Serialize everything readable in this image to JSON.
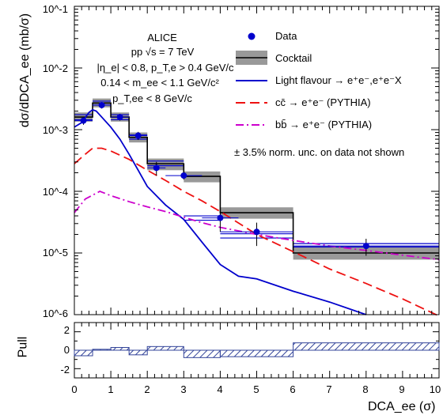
{
  "chart_data": {
    "type": "line",
    "experiment": "ALICE",
    "annotations": [
      "ALICE",
      "pp √s = 7 TeV",
      "|η_e| < 0.8, p_T,e > 0.4 GeV/c",
      "0.14 < m_ee < 1.1 GeV/c²",
      "p_T,ee < 8 GeV/c"
    ],
    "norm_note": "± 3.5% norm. unc. on data not shown",
    "xlabel": "DCA_ee (σ)",
    "ylabel": "dσ/dDCA_ee (mb/σ)",
    "pull_ylabel": "Pull",
    "xlim": [
      0,
      10
    ],
    "ylim": [
      1e-06,
      0.1
    ],
    "yscale": "log",
    "pull_ylim": [
      -3,
      3
    ],
    "x_ticks": [
      "0",
      "1",
      "2",
      "3",
      "4",
      "5",
      "6",
      "7",
      "8",
      "9",
      "10"
    ],
    "y_ticks": [
      "10^-6",
      "10^-5",
      "10^-4",
      "10^-3",
      "10^-2",
      "10^-1"
    ],
    "pull_ticks": [
      "2",
      "0",
      "-2"
    ],
    "legend": [
      "Data",
      "Cocktail",
      "Light flavour → e⁺e⁻,e⁺e⁻X",
      "cc̄ → e⁺e⁻ (PYTHIA)",
      "bb̄ → e⁺e⁻ (PYTHIA)"
    ],
    "colors": {
      "data": "#0000cc",
      "cocktail": "#000000",
      "band": "#999999",
      "lf": "#0000cc",
      "cc": "#ee1111",
      "bb": "#cc00cc",
      "pull": "#334499"
    },
    "data_points": [
      {
        "x": 0.25,
        "y": 0.0014,
        "xerr": 0.25,
        "yerr_lo": 0.0002,
        "yerr_hi": 0.0002
      },
      {
        "x": 0.75,
        "y": 0.0025,
        "xerr": 0.25,
        "yerr_lo": 0.0003,
        "yerr_hi": 0.0003
      },
      {
        "x": 1.25,
        "y": 0.0016,
        "xerr": 0.25,
        "yerr_lo": 0.0002,
        "yerr_hi": 0.0002
      },
      {
        "x": 1.75,
        "y": 0.0008,
        "xerr": 0.25,
        "yerr_lo": 0.00012,
        "yerr_hi": 0.00012
      },
      {
        "x": 2.25,
        "y": 0.00024,
        "xerr": 0.25,
        "yerr_lo": 6e-05,
        "yerr_hi": 6e-05
      },
      {
        "x": 3.0,
        "y": 0.00018,
        "xerr": 0.5,
        "yerr_lo": 2.5e-05,
        "yerr_hi": 2.5e-05
      },
      {
        "x": 4.0,
        "y": 3.7e-05,
        "xerr": 0.5,
        "yerr_lo": 1.5e-05,
        "yerr_hi": 1.5e-05
      },
      {
        "x": 5.0,
        "y": 2.2e-05,
        "xerr": 1.0,
        "yerr_lo": 9e-06,
        "yerr_hi": 9e-06
      },
      {
        "x": 8.0,
        "y": 1.3e-05,
        "xerr": 2.0,
        "yerr_lo": 4e-06,
        "yerr_hi": 4e-06
      }
    ],
    "cocktail_bins": [
      {
        "lo": 0.0,
        "hi": 0.5,
        "y": 0.0016,
        "band_lo": 0.00135,
        "band_hi": 0.0019
      },
      {
        "lo": 0.5,
        "hi": 1.0,
        "y": 0.0027,
        "band_lo": 0.0023,
        "band_hi": 0.0032
      },
      {
        "lo": 1.0,
        "hi": 1.5,
        "y": 0.0016,
        "band_lo": 0.00135,
        "band_hi": 0.0019
      },
      {
        "lo": 1.5,
        "hi": 2.0,
        "y": 0.00075,
        "band_lo": 0.00062,
        "band_hi": 0.0009
      },
      {
        "lo": 2.0,
        "hi": 3.0,
        "y": 0.00028,
        "band_lo": 0.00022,
        "band_hi": 0.00034
      },
      {
        "lo": 3.0,
        "hi": 4.0,
        "y": 0.000175,
        "band_lo": 0.00014,
        "band_hi": 0.00021
      },
      {
        "lo": 4.0,
        "hi": 6.0,
        "y": 4.5e-05,
        "band_lo": 3.6e-05,
        "band_hi": 5.5e-05
      },
      {
        "lo": 6.0,
        "hi": 10.0,
        "y": 1e-05,
        "band_lo": 7.8e-06,
        "band_hi": 1.3e-05
      }
    ],
    "lf_bins": [
      {
        "lo": 0.0,
        "hi": 0.5,
        "band_lo": 0.00145,
        "band_hi": 0.00175
      },
      {
        "lo": 0.5,
        "hi": 1.0,
        "band_lo": 0.0025,
        "band_hi": 0.0029
      },
      {
        "lo": 1.0,
        "hi": 1.5,
        "band_lo": 0.00145,
        "band_hi": 0.00175
      },
      {
        "lo": 1.5,
        "hi": 2.0,
        "band_lo": 0.0007,
        "band_hi": 0.00082
      },
      {
        "lo": 2.0,
        "hi": 3.0,
        "band_lo": 0.00026,
        "band_hi": 0.00031
      },
      {
        "lo": 3.0,
        "hi": 4.0,
        "band_lo": 3.4e-05,
        "band_hi": 4e-05
      },
      {
        "lo": 4.0,
        "hi": 6.0,
        "band_lo": 1.75e-05,
        "band_hi": 2.05e-05
      },
      {
        "lo": 6.0,
        "hi": 10.0,
        "band_lo": 1.25e-05,
        "band_hi": 1.42e-05
      }
    ],
    "lf_curve": [
      [
        0.0,
        0.0011
      ],
      [
        0.2,
        0.0013
      ],
      [
        0.4,
        0.0019
      ],
      [
        0.5,
        0.0021
      ],
      [
        0.6,
        0.002
      ],
      [
        0.75,
        0.0016
      ],
      [
        1.0,
        0.0011
      ],
      [
        1.25,
        0.0007
      ],
      [
        1.5,
        0.0004
      ],
      [
        1.75,
        0.00022
      ],
      [
        2.0,
        0.00012
      ],
      [
        2.5,
        6e-05
      ],
      [
        3.0,
        3.5e-05
      ],
      [
        3.5,
        1.5e-05
      ],
      [
        4.0,
        6.5e-06
      ],
      [
        4.5,
        4.2e-06
      ],
      [
        5.0,
        3.8e-06
      ],
      [
        6.0,
        2.4e-06
      ],
      [
        7.0,
        1.6e-06
      ],
      [
        8.0,
        1e-06
      ]
    ],
    "cc_curve": [
      [
        0.0,
        0.00028
      ],
      [
        0.3,
        0.0004
      ],
      [
        0.5,
        0.0005
      ],
      [
        0.75,
        0.0005
      ],
      [
        1.0,
        0.00045
      ],
      [
        1.5,
        0.00033
      ],
      [
        2.0,
        0.00022
      ],
      [
        2.5,
        0.00015
      ],
      [
        3.0,
        0.0001
      ],
      [
        3.5,
        7e-05
      ],
      [
        4.0,
        4.7e-05
      ],
      [
        5.0,
        2e-05
      ],
      [
        6.0,
        1.05e-05
      ],
      [
        7.0,
        5.5e-06
      ],
      [
        8.0,
        3.2e-06
      ],
      [
        9.0,
        1.8e-06
      ],
      [
        10.0,
        9.5e-07
      ]
    ],
    "bb_curve": [
      [
        0.0,
        4.5e-05
      ],
      [
        0.3,
        7.5e-05
      ],
      [
        0.7,
        0.0001
      ],
      [
        1.0,
        8.5e-05
      ],
      [
        1.5,
        6.8e-05
      ],
      [
        2.0,
        5.6e-05
      ],
      [
        2.5,
        4.7e-05
      ],
      [
        3.0,
        3.8e-05
      ],
      [
        3.5,
        3.1e-05
      ],
      [
        4.0,
        2.6e-05
      ],
      [
        5.0,
        2e-05
      ],
      [
        6.0,
        1.6e-05
      ],
      [
        7.0,
        1.3e-05
      ],
      [
        8.0,
        1.1e-05
      ],
      [
        9.0,
        9.2e-06
      ],
      [
        10.0,
        7.8e-06
      ]
    ],
    "pull_bins": [
      {
        "lo": 0.0,
        "hi": 0.5,
        "v": -0.6
      },
      {
        "lo": 0.5,
        "hi": 1.0,
        "v": 0.1
      },
      {
        "lo": 1.0,
        "hi": 1.5,
        "v": 0.3
      },
      {
        "lo": 1.5,
        "hi": 2.0,
        "v": -0.5
      },
      {
        "lo": 2.0,
        "hi": 3.0,
        "v": 0.4
      },
      {
        "lo": 3.0,
        "hi": 4.0,
        "v": -0.8
      },
      {
        "lo": 4.0,
        "hi": 6.0,
        "v": -0.7
      },
      {
        "lo": 6.0,
        "hi": 10.0,
        "v": 0.8
      }
    ]
  }
}
